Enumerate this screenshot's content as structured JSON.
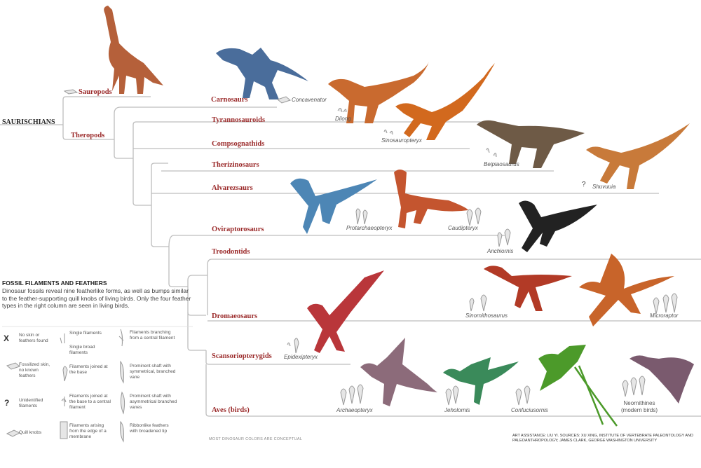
{
  "root": "SAURISCHIANS",
  "groups": {
    "sauropods": "Sauropods",
    "theropods": "Theropods"
  },
  "clades": {
    "carnosaurs": "Carnosaurs",
    "tyrannosauroids": "Tyrannosauroids",
    "compsognathids": "Compsognathids",
    "therizinosaurs": "Therizinosaurs",
    "alvarezsaurs": "Alvarezsaurs",
    "oviraptorosaurs": "Oviraptorosaurs",
    "troodontids": "Troodontids",
    "dromaeosaurs": "Dromaeosaurs",
    "scansoriopterygids": "Scansoriopterygids",
    "aves": "Aves (birds)"
  },
  "species": {
    "concavenator": "Concavenator",
    "dilong": "Dilong",
    "sinosauropteryx": "Sinosauropteryx",
    "beipiaosaurus": "Beipiaosaurus",
    "shuvuuia": "Shuvuuia",
    "protarchaeopteryx": "Protarchaeopteryx",
    "caudipteryx": "Caudipteryx",
    "anchiornis": "Anchiornis",
    "sinornithosaurus": "Sinornithosaurus",
    "microraptor": "Microraptor",
    "epidexipteryx": "Epidexipteryx",
    "archaeopteryx": "Archaeopteryx",
    "jeholornis": "Jeholornis",
    "confuciusornis": "Confuciusornis",
    "neornithines_1": "Neornithines",
    "neornithines_2": "(modern birds)"
  },
  "legend": {
    "title": "FOSSIL FILAMENTS AND FEATHERS",
    "intro": "Dinosaur fossils reveal nine featherlike forms, as well as bumps similar to the feather-supporting quill knobs of living birds. Only the four feather types in the right column are seen in living birds.",
    "no_skin": "No skin or feathers found",
    "fossilized_skin": "Fossilized skin, no known feathers",
    "unidentified": "Unidentified filaments",
    "quill_knobs": "Quill knobs",
    "single_filaments": "Single filaments",
    "single_broad": "Single broad filaments",
    "joined_base": "Filaments joined at the base",
    "joined_central": "Filaments joined at the base to a central filament",
    "membrane": "Filaments arising from the edge of a membrane",
    "branching": "Filaments branching from a central filament",
    "symmetrical": "Prominent shaft with symmetrical, branched vane",
    "asymmetrical": "Prominent shaft with asymmetrical branched vanes",
    "ribbonlike": "Ribbonlike feathers with broadened tip",
    "x_mark": "X",
    "q_mark": "?"
  },
  "shuvuuia_mark": "?",
  "footnote": "MOST DINOSAUR COLORS ARE CONCEPTUAL",
  "credit": "ART ASSISTANCE: LIU YI. SOURCES: XU XING, INSTITUTE OF VERTEBRATE PALEONTOLOGY AND PALEOANTHROPOLOGY; JAMES CLARK, GEORGE WASHINGTON UNIVERSITY",
  "colors": {
    "clade_label": "#9b2b2b",
    "branch_line": "#bdbdbd"
  }
}
